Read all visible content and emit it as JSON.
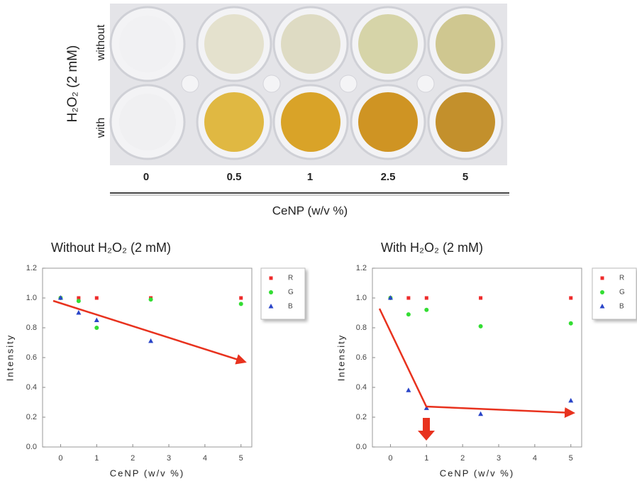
{
  "photo": {
    "group_label": "H₂O₂ (2 mM)",
    "row_labels": [
      "without",
      "with"
    ],
    "concentrations": [
      "0",
      "0.5",
      "1",
      "2.5",
      "5"
    ],
    "axis_label": "CeNP (w/v %)"
  },
  "chart_data": [
    {
      "type": "scatter",
      "title": "Without H₂O₂ (2 mM)",
      "x_label": "CeNP (w/v %)",
      "y_label": "Intensity",
      "xlim": [
        -0.5,
        5.3
      ],
      "ylim": [
        0,
        1.2
      ],
      "xticks": [
        0,
        1,
        2,
        3,
        4,
        5
      ],
      "yticks": [
        {
          "value": 0,
          "label": "0.0"
        },
        {
          "value": 0.2,
          "label": "0.2"
        },
        {
          "value": 0.4,
          "label": "0.4"
        },
        {
          "value": 0.6,
          "label": "0.6"
        },
        {
          "value": 0.8,
          "label": "0.8"
        },
        {
          "value": 1,
          "label": "1.0"
        },
        {
          "value": 1.2,
          "label": "1.2"
        }
      ],
      "x": [
        0,
        0.5,
        1,
        2.5,
        5
      ],
      "series": [
        {
          "name": "R",
          "color": "#ee2b2b",
          "marker": "square",
          "values": [
            1.0,
            1.0,
            1.0,
            1.0,
            1.0
          ]
        },
        {
          "name": "G",
          "color": "#33dd33",
          "marker": "circle",
          "values": [
            1.0,
            0.98,
            0.8,
            0.99,
            0.96
          ]
        },
        {
          "name": "B",
          "color": "#2a45c8",
          "marker": "triangle",
          "values": [
            1.0,
            0.9,
            0.85,
            0.71,
            null
          ]
        }
      ]
    },
    {
      "type": "scatter",
      "title": "With H₂O₂ (2 mM)",
      "x_label": "CeNP (w/v %)",
      "y_label": "Intensity",
      "xlim": [
        -0.5,
        5.3
      ],
      "ylim": [
        0,
        1.2
      ],
      "xticks": [
        0,
        1,
        2,
        3,
        4,
        5
      ],
      "yticks": [
        {
          "value": 0,
          "label": "0.0"
        },
        {
          "value": 0.2,
          "label": "0.2"
        },
        {
          "value": 0.4,
          "label": "0.4"
        },
        {
          "value": 0.6,
          "label": "0.6"
        },
        {
          "value": 0.8,
          "label": "0.8"
        },
        {
          "value": 1,
          "label": "1.0"
        },
        {
          "value": 1.2,
          "label": "1.2"
        }
      ],
      "x": [
        0,
        0.5,
        1,
        2.5,
        5
      ],
      "series": [
        {
          "name": "R",
          "color": "#ee2b2b",
          "marker": "square",
          "values": [
            1.0,
            1.0,
            1.0,
            1.0,
            1.0
          ]
        },
        {
          "name": "G",
          "color": "#33dd33",
          "marker": "circle",
          "values": [
            1.0,
            0.89,
            0.92,
            0.81,
            0.83
          ]
        },
        {
          "name": "B",
          "color": "#2a45c8",
          "marker": "triangle",
          "values": [
            1.0,
            0.38,
            0.26,
            0.22,
            0.31
          ]
        }
      ]
    }
  ]
}
